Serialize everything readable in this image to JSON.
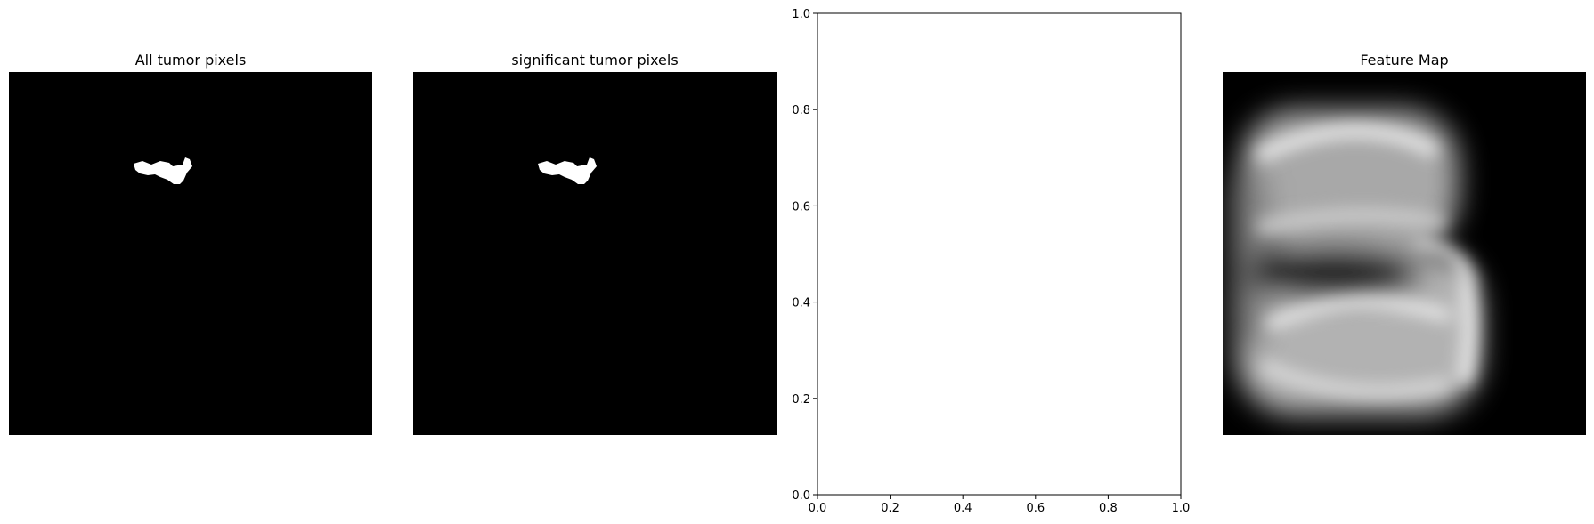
{
  "chart_data": [
    {
      "type": "image",
      "title": "All tumor pixels",
      "colormap": "gray",
      "content": "binary tumor mask"
    },
    {
      "type": "image",
      "title": "significant tumor pixels",
      "colormap": "gray",
      "content": "binary tumor mask"
    },
    {
      "type": "scatter",
      "title": "",
      "series": [],
      "xlim": [
        0.0,
        1.0
      ],
      "ylim": [
        0.0,
        1.0
      ],
      "x_ticks": [
        "0.0",
        "0.2",
        "0.4",
        "0.6",
        "0.8",
        "1.0"
      ],
      "y_ticks": [
        "0.0",
        "0.2",
        "0.4",
        "0.6",
        "0.8",
        "1.0"
      ],
      "grid": false
    },
    {
      "type": "image",
      "title": "Feature Map",
      "colormap": "gray",
      "content": "blurred grayscale feature activation map"
    }
  ]
}
